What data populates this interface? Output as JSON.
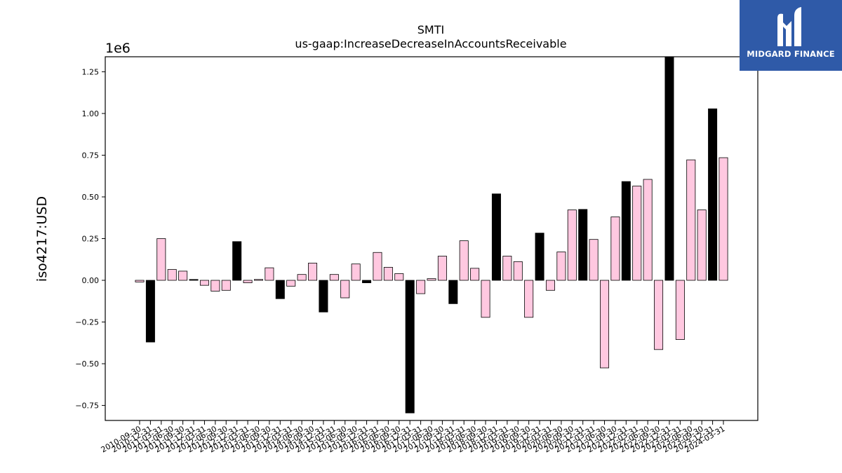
{
  "chart_data": {
    "type": "bar",
    "title": "SMTI",
    "subtitle": "us-gaap:IncreaseDecreaseInAccountsReceivable",
    "xlabel": "",
    "ylabel": "iso4217:USD",
    "offset_label": "1e6",
    "ylim": [
      -0.84,
      1.34
    ],
    "yticks": [
      "1.25",
      "1.00",
      "0.75",
      "0.50",
      "0.25",
      "0.00",
      "−0.25",
      "−0.50",
      "−0.75"
    ],
    "ytick_values": [
      1.25,
      1.0,
      0.75,
      0.5,
      0.25,
      0.0,
      -0.25,
      -0.5,
      -0.75
    ],
    "grid": false,
    "colors": {
      "annual": "#000000",
      "quarterly": "#ffc8e0",
      "edge": "#000000"
    },
    "categories": [
      "2010-09-30",
      "2010-12-31",
      "2011-03-31",
      "2011-06-30",
      "2011-09-30",
      "2011-12-31",
      "2012-03-31",
      "2012-06-30",
      "2012-09-30",
      "2012-12-31",
      "2013-03-31",
      "2013-06-30",
      "2013-09-30",
      "2013-12-31",
      "2014-03-31",
      "2014-06-30",
      "2014-09-30",
      "2014-12-31",
      "2015-03-31",
      "2015-06-30",
      "2015-09-30",
      "2015-12-31",
      "2016-03-31",
      "2016-06-30",
      "2016-09-30",
      "2016-12-31",
      "2017-03-31",
      "2017-06-30",
      "2017-09-30",
      "2017-12-31",
      "2018-03-31",
      "2018-06-30",
      "2018-09-30",
      "2018-12-31",
      "2019-03-31",
      "2019-06-30",
      "2019-09-30",
      "2019-12-31",
      "2020-03-31",
      "2020-06-30",
      "2020-09-30",
      "2020-12-31",
      "2021-03-31",
      "2021-06-30",
      "2021-09-30",
      "2021-12-31",
      "2022-03-31",
      "2022-06-30",
      "2022-09-30",
      "2022-12-31",
      "2023-03-31",
      "2023-06-30",
      "2023-09-30",
      "2023-12-31",
      "2024-03-31"
    ],
    "values": [
      -0.01,
      -0.37,
      0.25,
      0.065,
      0.055,
      0.005,
      -0.03,
      -0.065,
      -0.06,
      0.232,
      -0.015,
      0.005,
      0.075,
      -0.11,
      -0.035,
      0.035,
      0.103,
      -0.19,
      0.035,
      -0.105,
      0.098,
      -0.015,
      0.167,
      0.078,
      0.04,
      -0.795,
      -0.08,
      0.01,
      0.145,
      -0.14,
      0.237,
      0.072,
      -0.222,
      0.518,
      0.145,
      0.112,
      -0.222,
      0.283,
      -0.06,
      0.17,
      0.422,
      0.425,
      0.245,
      -0.525,
      0.38,
      0.592,
      0.565,
      0.605,
      -0.415,
      1.34,
      -0.355,
      0.722,
      0.422,
      1.028,
      0.735
    ],
    "period": [
      "q",
      "a",
      "q",
      "q",
      "q",
      "a",
      "q",
      "q",
      "q",
      "a",
      "q",
      "q",
      "q",
      "a",
      "q",
      "q",
      "q",
      "a",
      "q",
      "q",
      "q",
      "a",
      "q",
      "q",
      "q",
      "a",
      "q",
      "q",
      "q",
      "a",
      "q",
      "q",
      "q",
      "a",
      "q",
      "q",
      "q",
      "a",
      "q",
      "q",
      "q",
      "a",
      "q",
      "q",
      "q",
      "a",
      "q",
      "q",
      "q",
      "a",
      "q",
      "q",
      "q",
      "a",
      "q"
    ]
  },
  "logo": {
    "text": "MIDGARD FINANCE",
    "icon": "midgard-logo-icon"
  }
}
